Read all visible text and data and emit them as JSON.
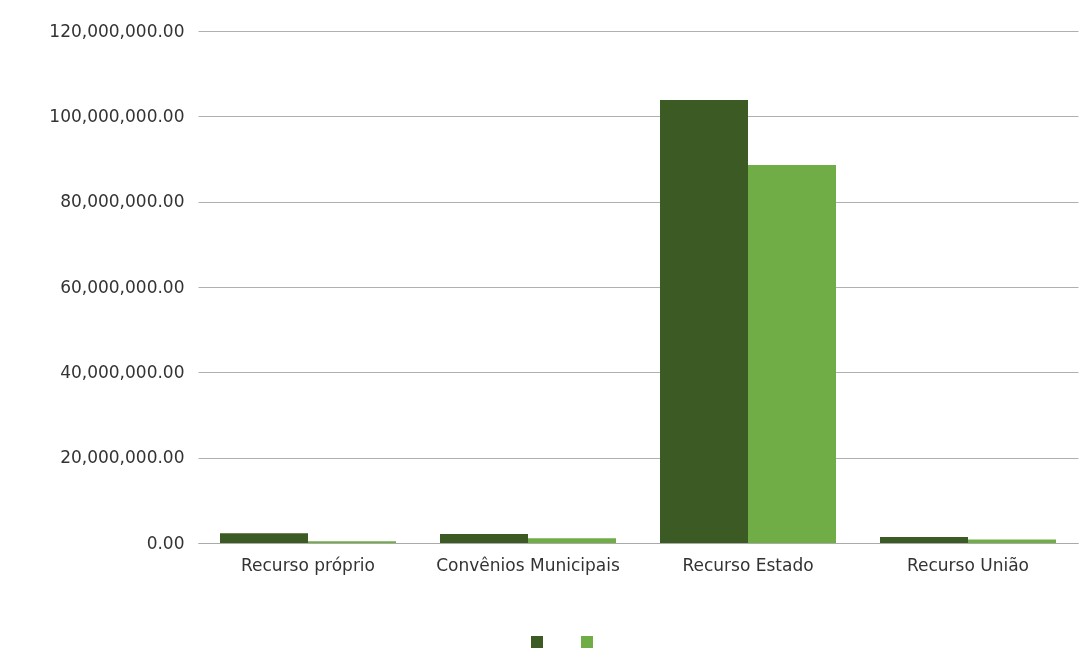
{
  "chart_data": {
    "type": "bar",
    "categories": [
      "Recurso próprio",
      "Convênios Municipais",
      "Recurso Estado",
      "Recurso União"
    ],
    "series": [
      {
        "color": "#3b5a24",
        "values": [
          2300000,
          2100000,
          103800000,
          1400000
        ]
      },
      {
        "color": "#70ad47",
        "values": [
          400000,
          1100000,
          88600000,
          800000
        ]
      }
    ],
    "ylim": [
      0,
      120000000
    ],
    "yticks": [
      {
        "value": 0,
        "label": "0.00"
      },
      {
        "value": 20000000,
        "label": "20,000,000.00"
      },
      {
        "value": 40000000,
        "label": "40,000,000.00"
      },
      {
        "value": 60000000,
        "label": "60,000,000.00"
      },
      {
        "value": 80000000,
        "label": "80,000,000.00"
      },
      {
        "value": 100000000,
        "label": "100,000,000.00"
      },
      {
        "value": 120000000,
        "label": "120,000,000.00"
      }
    ],
    "grid": "y"
  }
}
